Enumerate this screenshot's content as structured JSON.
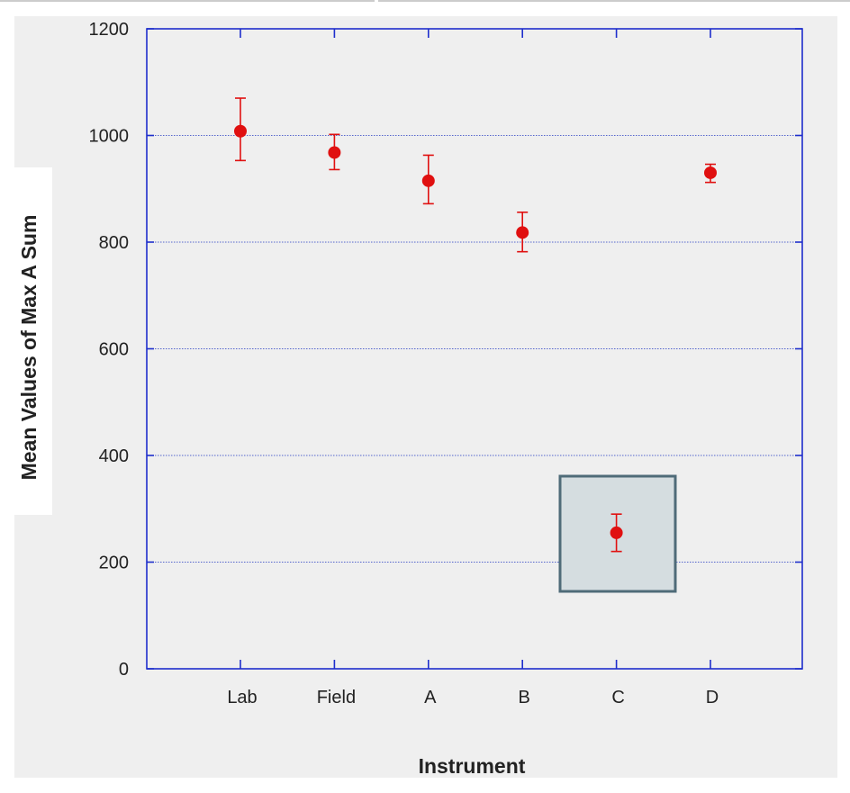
{
  "chart_data": {
    "type": "scatter",
    "xlabel": "Instrument",
    "ylabel": "Mean Values of Max A Sum",
    "ylim": [
      0,
      1200
    ],
    "yticks": [
      "0",
      "200",
      "400",
      "600",
      "800",
      "1000",
      "1200"
    ],
    "categories": [
      "Lab",
      "Field",
      "A",
      "B",
      "C",
      "D"
    ],
    "values": [
      1008,
      968,
      915,
      818,
      255,
      930
    ],
    "error_low": [
      953,
      936,
      872,
      782,
      220,
      912
    ],
    "error_high": [
      1070,
      1002,
      963,
      856,
      290,
      946
    ],
    "grid": "horizontal dotted",
    "highlighted_category": "C",
    "colors": {
      "point": "#e01010",
      "axis": "#1e2ecc",
      "grid": "#5566cc",
      "plot_background": "#efefef",
      "highlight_fill": "#d5dde0",
      "highlight_border": "#4f6b78"
    }
  }
}
